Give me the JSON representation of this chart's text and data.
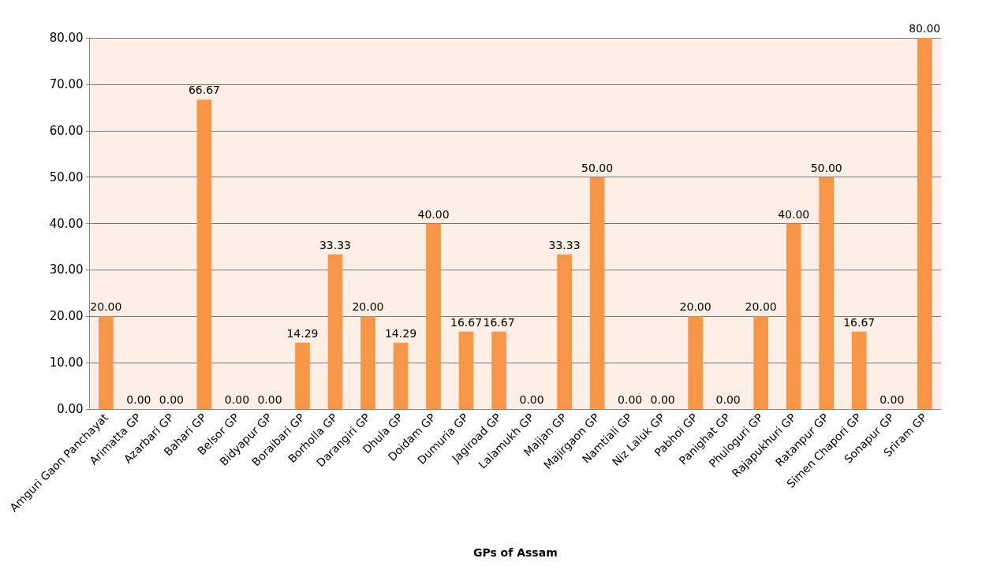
{
  "chart_data": {
    "type": "bar",
    "xlabel": "GPs of Assam",
    "categories": [
      "Amguri Gaon Panchayat",
      "Arimatta GP",
      "Azarbari GP",
      "Bahari GP",
      "Belsor GP",
      "Bidyapur GP",
      "Boraibari GP",
      "Borholla GP",
      "Darangiri GP",
      "Dhula GP",
      "Doidam GP",
      "Dumuria GP",
      "Jagiroad GP",
      "Lalamukh GP",
      "Maijan GP",
      "Majirgaon GP",
      "Namtiali GP",
      "Niz Laluk GP",
      "Pabhoi GP",
      "Panighat GP",
      "Phuloguri GP",
      "Rajapukhuri GP",
      "Ratanpur GP",
      "Simen Chapori GP",
      "Sonapur GP",
      "Sriram GP"
    ],
    "values": [
      20,
      0,
      0,
      66.67,
      0,
      0,
      14.29,
      33.33,
      20,
      14.29,
      40,
      16.67,
      16.67,
      0,
      33.33,
      50,
      0,
      0,
      20,
      0,
      20,
      40,
      50,
      16.67,
      0,
      80
    ],
    "value_labels": [
      "20.00",
      "0.00",
      "0.00",
      "66.67",
      "0.00",
      "0.00",
      "14.29",
      "33.33",
      "20.00",
      "14.29",
      "40.00",
      "16.67",
      "16.67",
      "0.00",
      "33.33",
      "50.00",
      "0.00",
      "0.00",
      "20.00",
      "0.00",
      "20.00",
      "40.00",
      "50.00",
      "16.67",
      "0.00",
      "80.00"
    ],
    "color": "#f79646",
    "ylim": [
      0,
      80
    ],
    "yticks": [
      {
        "value": 0,
        "label": "0.00"
      },
      {
        "value": 10,
        "label": "10.00"
      },
      {
        "value": 20,
        "label": "20.00"
      },
      {
        "value": 30,
        "label": "30.00"
      },
      {
        "value": 40,
        "label": "40.00"
      },
      {
        "value": 50,
        "label": "50.00"
      },
      {
        "value": 60,
        "label": "60.00"
      },
      {
        "value": 70,
        "label": "70.00"
      },
      {
        "value": 80,
        "label": "80.00"
      }
    ],
    "grid": "y"
  }
}
